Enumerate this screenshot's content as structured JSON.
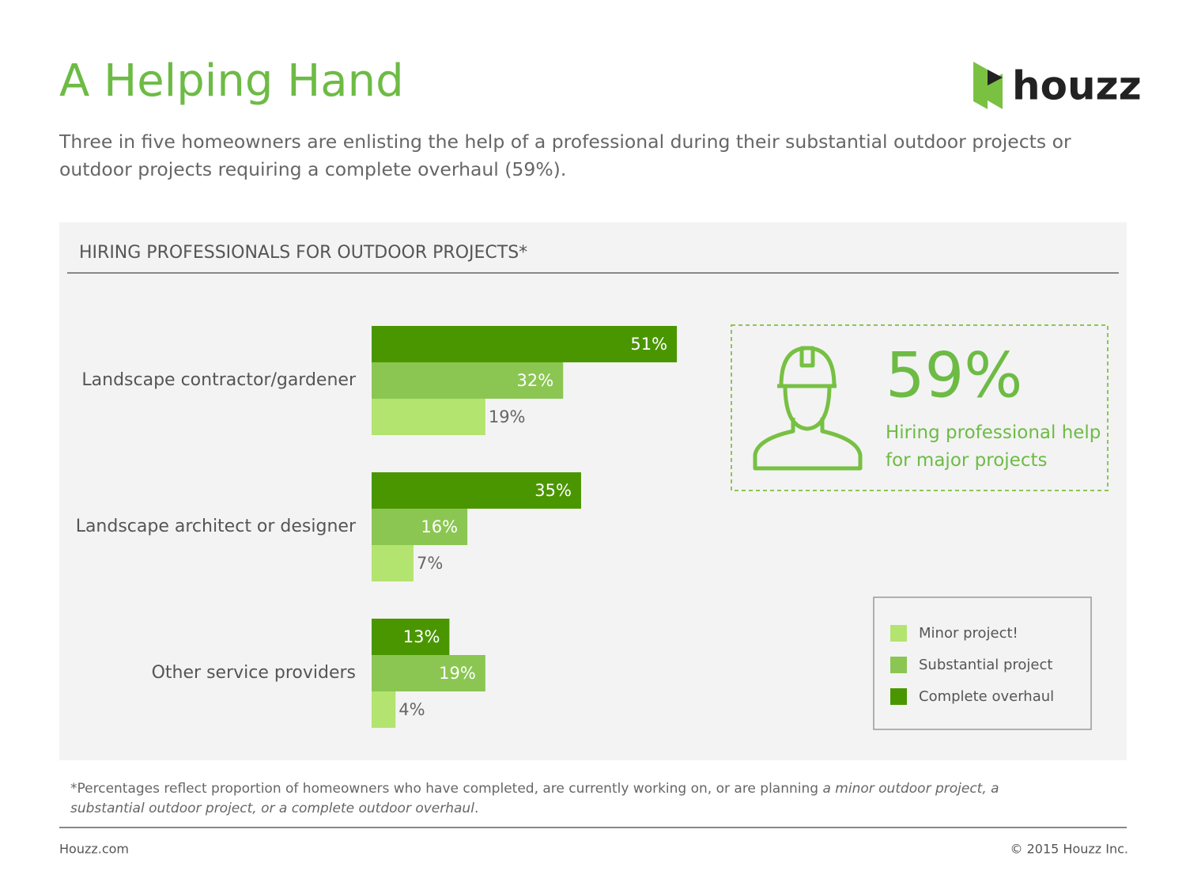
{
  "header": {
    "title": "A Helping Hand",
    "subtitle": "Three in five homeowners are enlisting the help of a professional during their substantial outdoor projects or outdoor projects requiring a complete overhaul (59%).",
    "logo": "houzz"
  },
  "chart_data": {
    "type": "bar",
    "orientation": "horizontal",
    "title": "HIRING PROFESSIONALS FOR OUTDOOR PROJECTS*",
    "categories": [
      "Landscape contractor/gardener",
      "Landscape architect or designer",
      "Other service providers"
    ],
    "series": [
      {
        "name": "Minor project!",
        "color": "#b3e46f",
        "values": [
          19,
          7,
          4
        ],
        "value_labels": [
          "19%",
          "7%",
          "4%"
        ]
      },
      {
        "name": "Substantial project",
        "color": "#8bc653",
        "values": [
          32,
          16,
          19
        ],
        "value_labels": [
          "32%",
          "16%",
          "19%"
        ]
      },
      {
        "name": "Complete overhaul",
        "color": "#4a9600",
        "values": [
          51,
          35,
          13
        ],
        "value_labels": [
          "51%",
          "35%",
          "13%"
        ]
      }
    ]
  },
  "callout": {
    "value": "59%",
    "text": "Hiring professional help for major projects"
  },
  "footnote": {
    "text": "*Percentages reflect proportion of homeowners who have completed, are currently working on, or are planning ",
    "emphasis": "a minor outdoor project, a substantial outdoor project, or a complete outdoor overhaul",
    "end": "."
  },
  "footer": {
    "left": "Houzz.com",
    "right": "© 2015 Houzz Inc."
  }
}
